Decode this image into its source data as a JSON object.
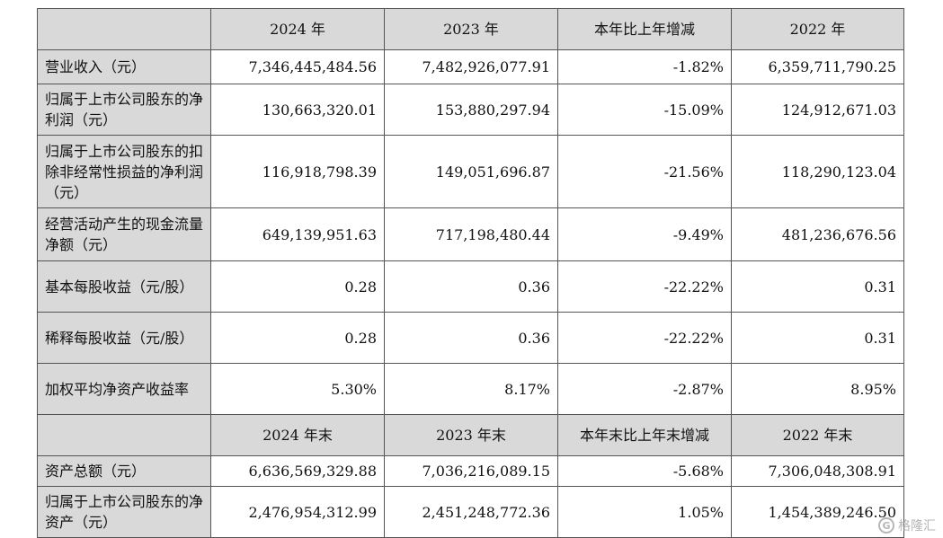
{
  "header": {
    "corner": "",
    "columns": [
      "2024 年",
      "2023 年",
      "本年比上年增减",
      "2022 年"
    ]
  },
  "rows": [
    {
      "label": "营业收入（元）",
      "values": [
        "7,346,445,484.56",
        "7,482,926,077.91",
        "-1.82%",
        "6,359,711,790.25"
      ]
    },
    {
      "label": "归属于上市公司股东的净利润（元）",
      "values": [
        "130,663,320.01",
        "153,880,297.94",
        "-15.09%",
        "124,912,671.03"
      ]
    },
    {
      "label": "归属于上市公司股东的扣除非经常性损益的净利润（元）",
      "values": [
        "116,918,798.39",
        "149,051,696.87",
        "-21.56%",
        "118,290,123.04"
      ]
    },
    {
      "label": "经营活动产生的现金流量净额（元）",
      "values": [
        "649,139,951.63",
        "717,198,480.44",
        "-9.49%",
        "481,236,676.56"
      ]
    },
    {
      "label": "基本每股收益（元/股）",
      "values": [
        "0.28",
        "0.36",
        "-22.22%",
        "0.31"
      ]
    },
    {
      "label": "稀释每股收益（元/股）",
      "values": [
        "0.28",
        "0.36",
        "-22.22%",
        "0.31"
      ]
    },
    {
      "label": "加权平均净资产收益率",
      "values": [
        "5.30%",
        "8.17%",
        "-2.87%",
        "8.95%"
      ]
    }
  ],
  "header2": {
    "corner": "",
    "columns": [
      "2024 年末",
      "2023 年末",
      "本年末比上年末增减",
      "2022 年末"
    ]
  },
  "rows2": [
    {
      "label": "资产总额（元）",
      "values": [
        "6,636,569,329.88",
        "7,036,216,089.15",
        "-5.68%",
        "7,306,048,308.91"
      ]
    },
    {
      "label": "归属于上市公司股东的净资产（元）",
      "values": [
        "2,476,954,312.99",
        "2,451,248,772.36",
        "1.05%",
        "1,454,389,246.50"
      ]
    }
  ],
  "watermark": {
    "logo_char": "G",
    "text": "格隆汇"
  }
}
